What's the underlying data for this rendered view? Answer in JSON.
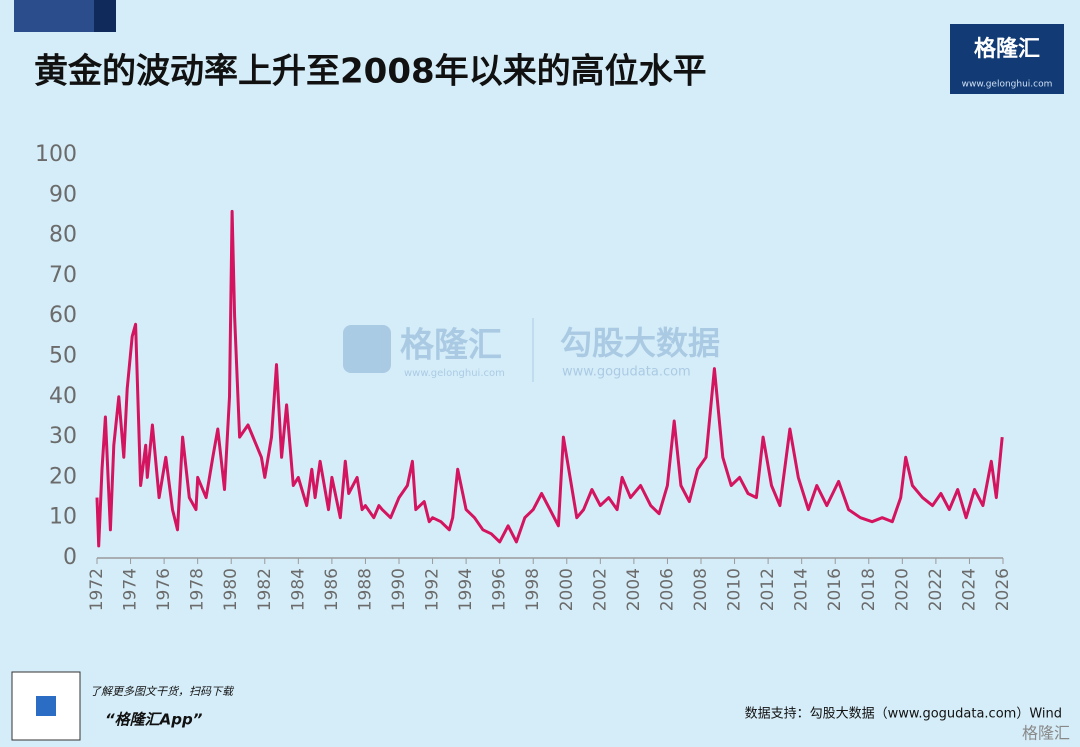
{
  "header": {
    "logo": "格隆汇",
    "logo_url": "www.gelonghui.com"
  },
  "watermark": {
    "brand1": "格隆汇",
    "url1": "www.gelonghui.com",
    "brand2": "勾股大数据",
    "url2": "www.gogudata.com"
  },
  "footer": {
    "promo": "了解更多图文干货，扫码下载",
    "app": "“格隆汇App”",
    "source": "数据支持：勾股大数据（www.gogudata.com）Wind",
    "corner_logo": "格隆汇"
  },
  "chart_data": {
    "type": "line",
    "title": "黄金的波动率上升至2008年以来的高位水平",
    "color": "#d4145f",
    "x": [
      1972.0,
      1972.1,
      1972.3,
      1972.5,
      1972.8,
      1973.0,
      1973.3,
      1973.6,
      1973.8,
      1974.1,
      1974.3,
      1974.6,
      1974.9,
      1975.0,
      1975.3,
      1975.7,
      1976.1,
      1976.5,
      1976.8,
      1977.1,
      1977.5,
      1977.9,
      1978.0,
      1978.5,
      1978.9,
      1979.2,
      1979.6,
      1979.9,
      1980.05,
      1980.2,
      1980.5,
      1981.0,
      1981.5,
      1981.8,
      1982.0,
      1982.4,
      1982.7,
      1983.0,
      1983.3,
      1983.7,
      1984.0,
      1984.5,
      1984.8,
      1985.0,
      1985.3,
      1985.8,
      1986.0,
      1986.5,
      1986.8,
      1987.0,
      1987.5,
      1987.8,
      1988.0,
      1988.5,
      1988.8,
      1989.0,
      1989.5,
      1990.0,
      1990.5,
      1990.8,
      1991.0,
      1991.5,
      1991.8,
      1992.0,
      1992.5,
      1993.0,
      1993.2,
      1993.5,
      1994.0,
      1994.5,
      1995.0,
      1995.5,
      1996.0,
      1996.5,
      1997.0,
      1997.5,
      1998.0,
      1998.5,
      1999.0,
      1999.5,
      1999.8,
      2000.2,
      2000.6,
      2001.0,
      2001.5,
      2002.0,
      2002.5,
      2003.0,
      2003.3,
      2003.8,
      2004.4,
      2005.0,
      2005.5,
      2006.0,
      2006.4,
      2006.8,
      2007.3,
      2007.8,
      2008.3,
      2008.8,
      2009.3,
      2009.8,
      2010.3,
      2010.8,
      2011.3,
      2011.7,
      2012.2,
      2012.7,
      2013.3,
      2013.8,
      2014.4,
      2014.9,
      2015.5,
      2016.2,
      2016.8,
      2017.5,
      2018.2,
      2018.8,
      2019.4,
      2019.9,
      2020.2,
      2020.6,
      2021.2,
      2021.8,
      2022.3,
      2022.8,
      2023.3,
      2023.8,
      2024.3,
      2024.8,
      2025.3,
      2025.6,
      2025.95
    ],
    "values": [
      15,
      3,
      22,
      35,
      7,
      28,
      40,
      25,
      42,
      55,
      58,
      18,
      28,
      20,
      33,
      15,
      25,
      12,
      7,
      30,
      15,
      12,
      20,
      15,
      25,
      32,
      17,
      40,
      86,
      60,
      30,
      33,
      28,
      25,
      20,
      30,
      48,
      25,
      38,
      18,
      20,
      13,
      22,
      15,
      24,
      12,
      20,
      10,
      24,
      16,
      20,
      12,
      13,
      10,
      13,
      12,
      10,
      15,
      18,
      24,
      12,
      14,
      9,
      10,
      9,
      7,
      10,
      22,
      12,
      10,
      7,
      6,
      4,
      8,
      4,
      10,
      12,
      16,
      12,
      8,
      30,
      20,
      10,
      12,
      17,
      13,
      15,
      12,
      20,
      15,
      18,
      13,
      11,
      18,
      34,
      18,
      14,
      22,
      25,
      47,
      25,
      18,
      20,
      16,
      15,
      30,
      18,
      13,
      32,
      20,
      12,
      18,
      13,
      19,
      12,
      10,
      9,
      10,
      9,
      15,
      25,
      18,
      15,
      13,
      16,
      12,
      17,
      10,
      17,
      13,
      24,
      15,
      30
    ],
    "xlim": [
      1972,
      2026
    ],
    "xticks": [
      1972,
      1974,
      1976,
      1978,
      1980,
      1982,
      1984,
      1986,
      1988,
      1990,
      1992,
      1994,
      1996,
      1998,
      2000,
      2002,
      2004,
      2006,
      2008,
      2010,
      2012,
      2014,
      2016,
      2018,
      2020,
      2022,
      2024,
      2026
    ],
    "ylim": [
      0,
      100
    ],
    "yticks": [
      0,
      10,
      20,
      30,
      40,
      50,
      60,
      70,
      80,
      90,
      100
    ],
    "grid": false
  }
}
